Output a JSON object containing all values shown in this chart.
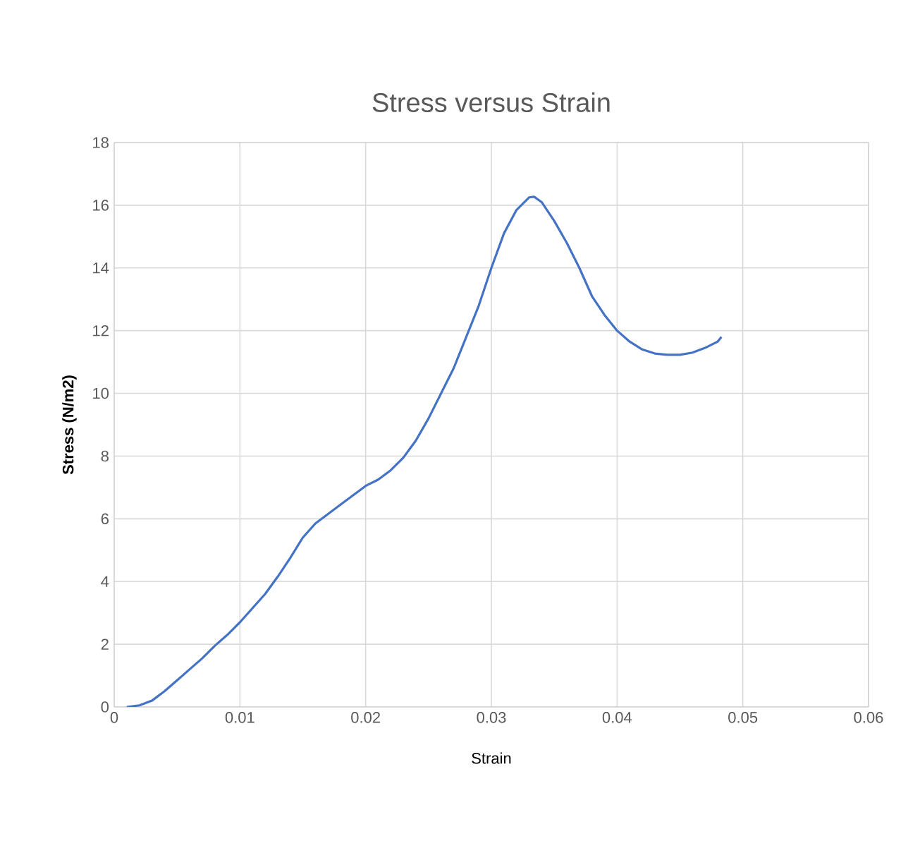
{
  "chart_data": {
    "type": "line",
    "title": "Stress versus Strain",
    "xlabel": "Strain",
    "ylabel": "Stress (N/m2)",
    "xlim": [
      0,
      0.06
    ],
    "xticks": [
      0,
      0.01,
      0.02,
      0.03,
      0.04,
      0.05,
      0.06
    ],
    "ylim": [
      0,
      18
    ],
    "yticks": [
      0,
      2,
      4,
      6,
      8,
      10,
      12,
      14,
      16,
      18
    ],
    "grid": true,
    "marker": "none",
    "line_style": "solid",
    "series": [
      {
        "color": "#4472c4",
        "x": [
          0.001,
          0.002,
          0.003,
          0.004,
          0.005,
          0.006,
          0.007,
          0.008,
          0.009,
          0.01,
          0.011,
          0.012,
          0.013,
          0.014,
          0.015,
          0.016,
          0.017,
          0.018,
          0.019,
          0.02,
          0.021,
          0.022,
          0.023,
          0.024,
          0.025,
          0.026,
          0.027,
          0.028,
          0.029,
          0.03,
          0.031,
          0.032,
          0.033,
          0.0334,
          0.034,
          0.035,
          0.036,
          0.037,
          0.038,
          0.039,
          0.04,
          0.041,
          0.042,
          0.043,
          0.044,
          0.045,
          0.046,
          0.047,
          0.048,
          0.0483
        ],
        "values": [
          0,
          0.05,
          0.2,
          0.5,
          0.85,
          1.2,
          1.55,
          1.95,
          2.3,
          2.7,
          3.15,
          3.6,
          4.15,
          4.75,
          5.4,
          5.85,
          6.15,
          6.45,
          6.75,
          7.05,
          7.25,
          7.55,
          7.95,
          8.5,
          9.2,
          10.0,
          10.8,
          11.8,
          12.8,
          14.0,
          15.1,
          15.85,
          16.25,
          16.27,
          16.1,
          15.5,
          14.8,
          14.0,
          13.1,
          12.5,
          12.0,
          11.65,
          11.4,
          11.27,
          11.23,
          11.23,
          11.3,
          11.45,
          11.65,
          11.8
        ]
      }
    ]
  }
}
